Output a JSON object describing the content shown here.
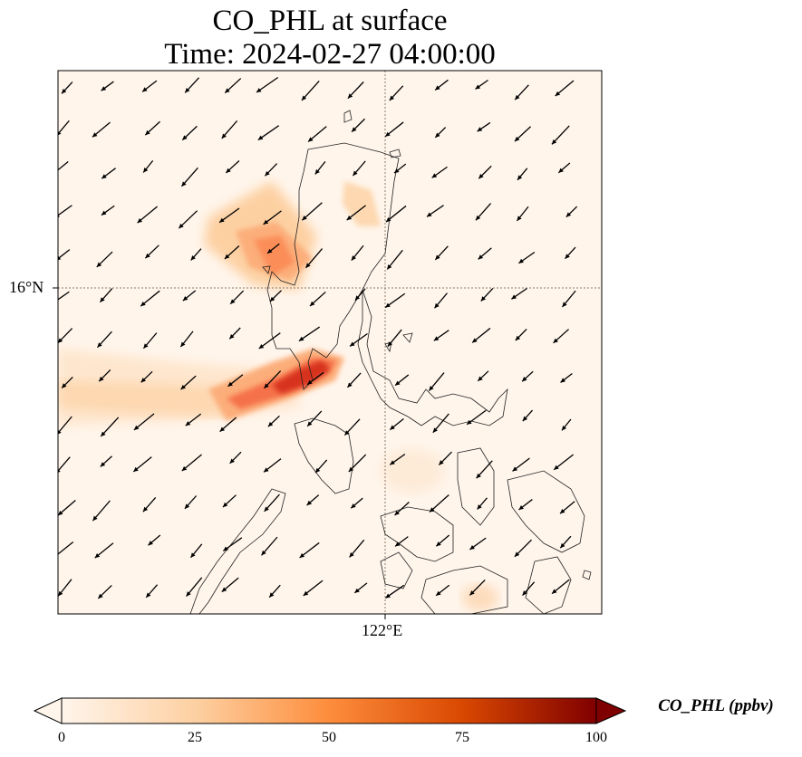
{
  "title_line1": "CO_PHL at surface",
  "title_line2": "Time: 2024-02-27 04:00:00",
  "lat_tick": "16°N",
  "lon_tick": "122°E",
  "colorbar": {
    "label": "CO_PHL (ppbv)",
    "ticks": [
      "0",
      "25",
      "50",
      "75",
      "100"
    ],
    "min": 0,
    "max": 100,
    "colors": [
      "#fff5eb",
      "#fdd0a2",
      "#fd8d3c",
      "#d94801",
      "#7f0000"
    ],
    "extend": "both"
  },
  "map": {
    "variable": "CO_PHL",
    "units": "ppbv",
    "gridlines": "dotted",
    "features": [
      "coastlines",
      "wind-vectors"
    ]
  }
}
